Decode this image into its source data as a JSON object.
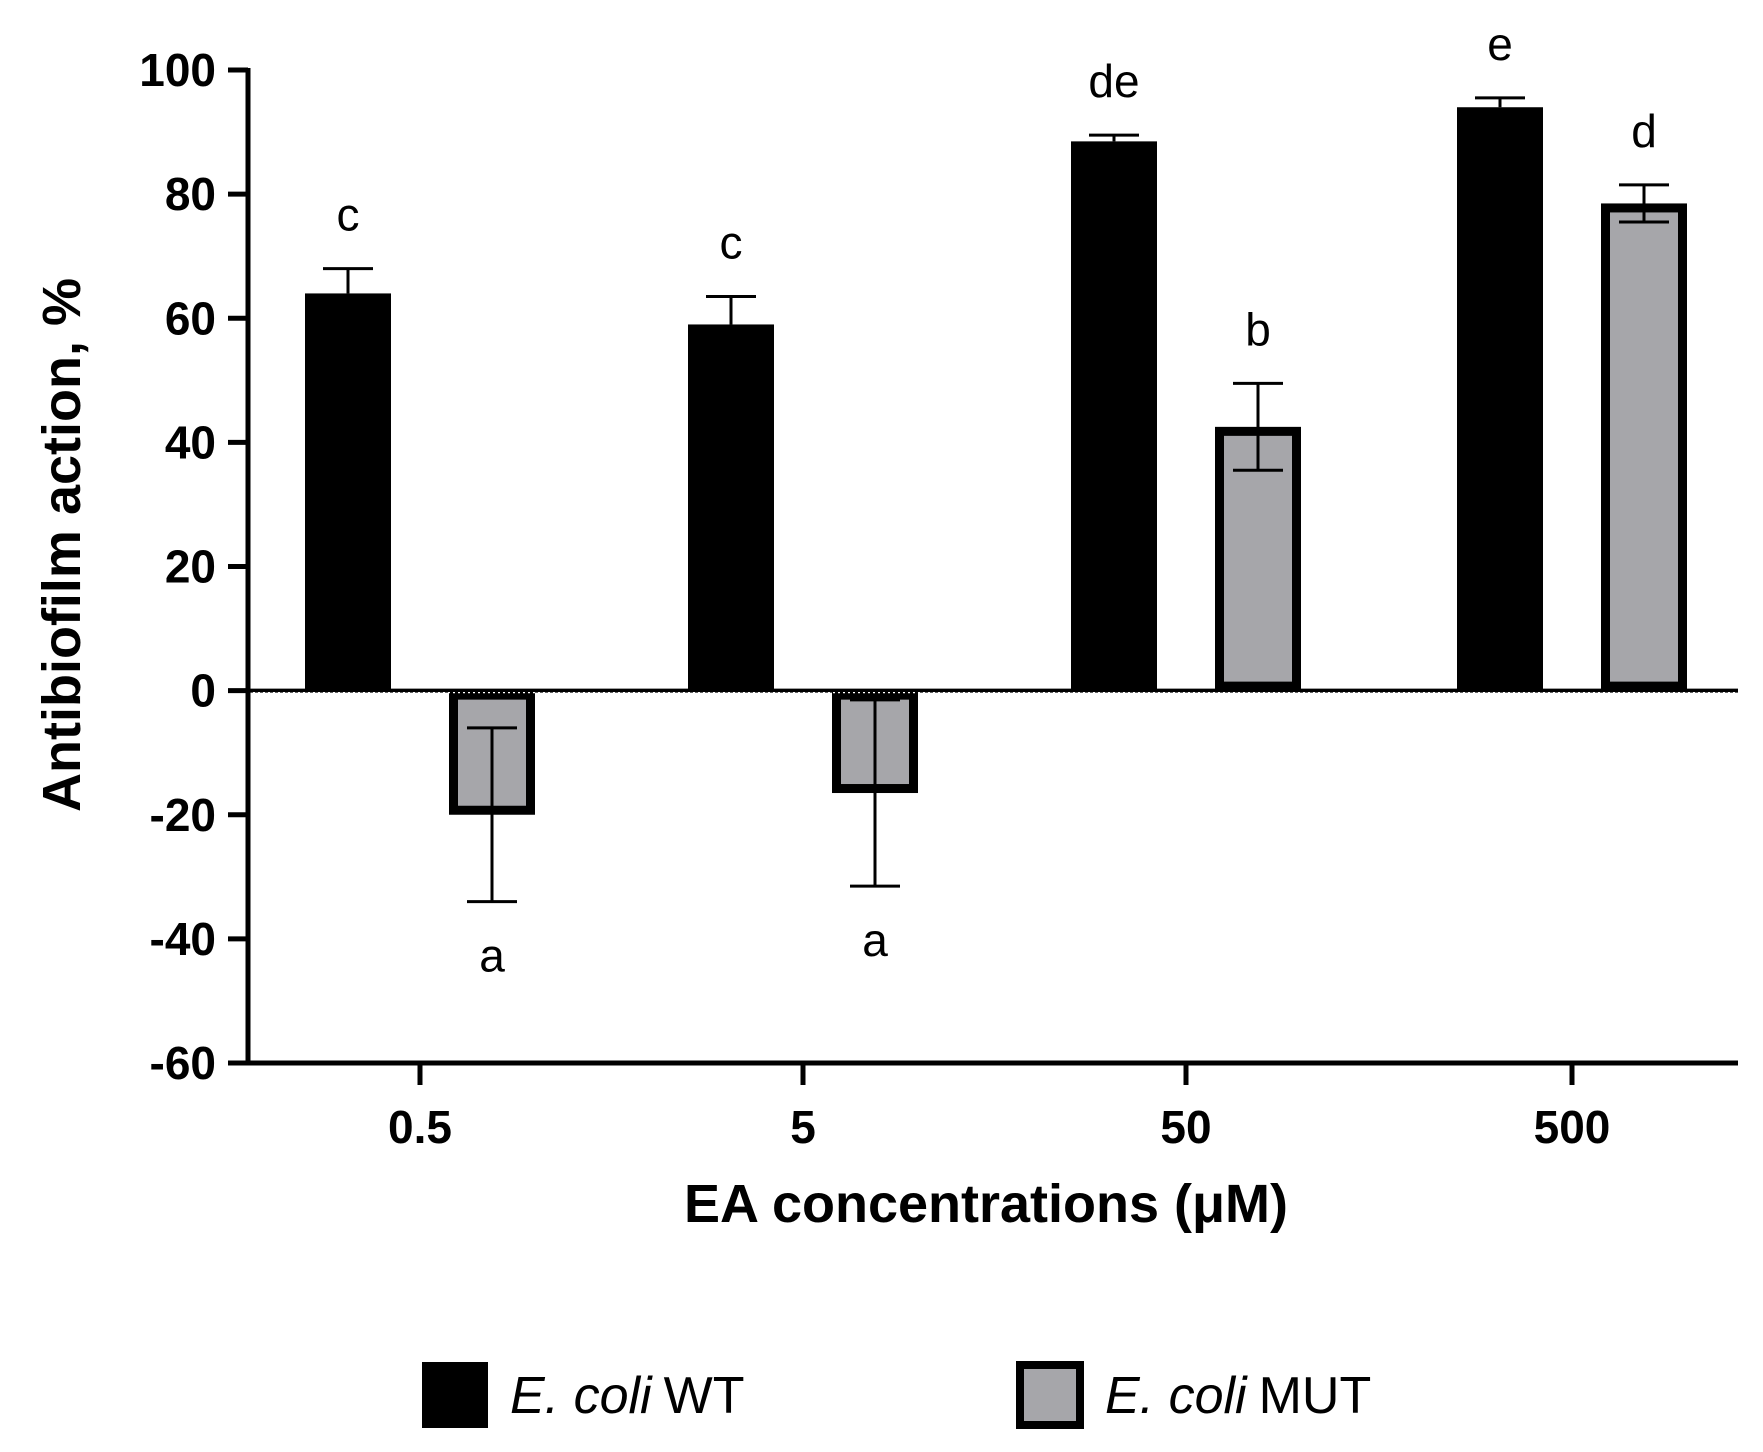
{
  "chart_data": {
    "type": "bar",
    "title": "",
    "xlabel": "EA concentrations (μM)",
    "ylabel": "Antibiofilm action, %",
    "ylim": [
      -60,
      100
    ],
    "yticks": [
      100,
      80,
      60,
      40,
      20,
      0,
      -20,
      -40,
      -60
    ],
    "categories": [
      "0.5",
      "5",
      "50",
      "500"
    ],
    "series": [
      {
        "name": "E. coli WT",
        "name_italic": "E. coli",
        "name_plain": "WT",
        "color": "#000000",
        "values": [
          64,
          59,
          88.5,
          94
        ],
        "errors": [
          4,
          4.5,
          1,
          1.5
        ],
        "letters": [
          "c",
          "c",
          "de",
          "e"
        ]
      },
      {
        "name": "E. coli MUT",
        "name_italic": "E. coli",
        "name_plain": "MUT",
        "color": "#a6a6aa",
        "values": [
          -20,
          -16.5,
          42.5,
          78.5
        ],
        "errors": [
          14,
          15,
          7,
          3
        ],
        "letters": [
          "a",
          "a",
          "b",
          "d"
        ]
      }
    ],
    "legend_position": "bottom"
  }
}
